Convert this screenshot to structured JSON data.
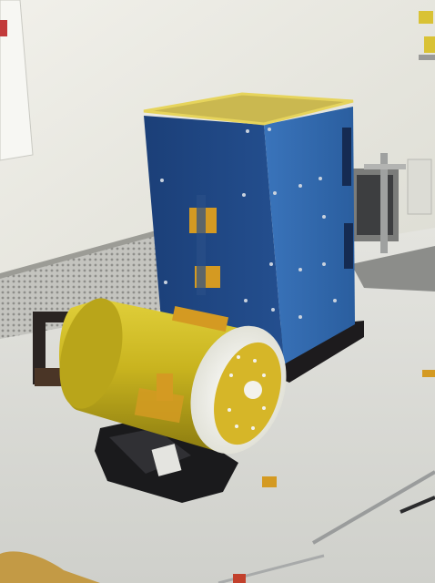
{
  "scene": {
    "palette": {
      "wall": "#ecebe3",
      "bench": "#ddddd6",
      "panel_blue": "#2e63a8",
      "panel_blue_dark": "#1b3f78",
      "canister_yellow": "#c9b41f",
      "kapton_tape": "#d49a22",
      "lid_white": "#f2f1e8",
      "mesh_grey": "#b9b9b4",
      "base_black": "#1d1b1d"
    },
    "objects": [
      "wall-paper-note-icon",
      "perforated-metal-panel-icon",
      "blue-instrument-box-icon",
      "yellow-canister-icon",
      "black-bag-icon",
      "lab-stand-icon",
      "screwdriver-icon",
      "pliers-icon"
    ]
  }
}
